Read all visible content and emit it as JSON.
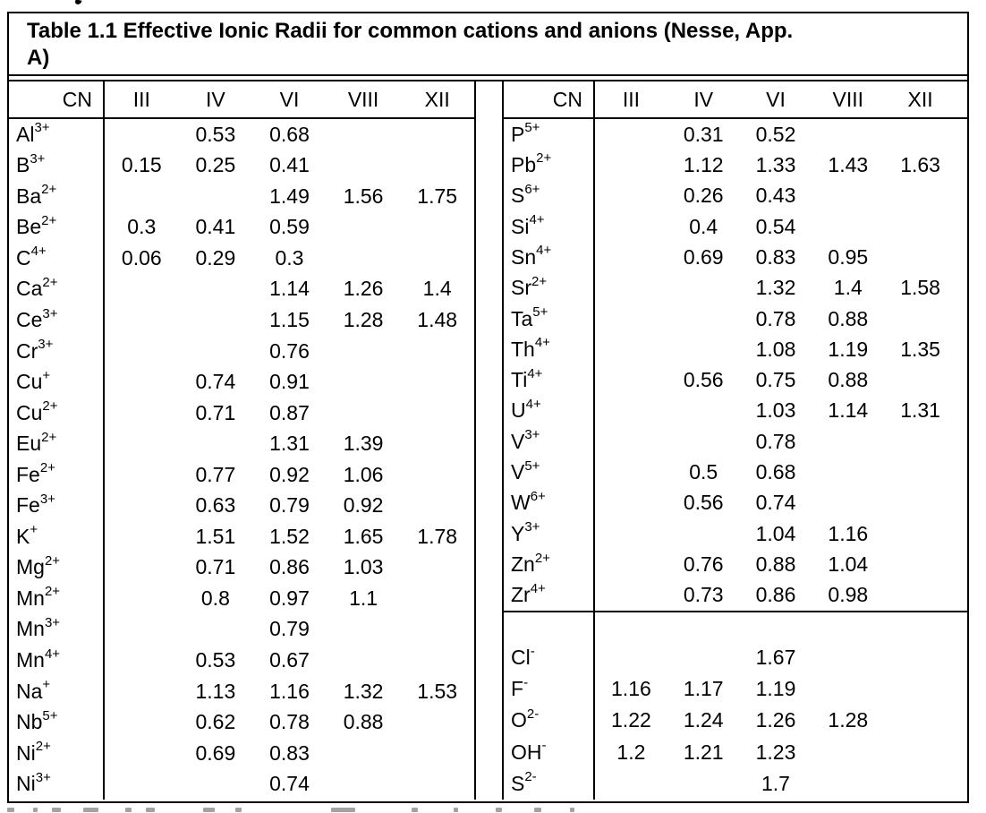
{
  "table": {
    "title": "Table 1.1 Effective Ionic Radii for common cations and anions (Nesse, App. A)",
    "title_line1": "Table 1.1 Effective Ionic Radii for common cations and anions (Nesse, App.",
    "title_line2": "A)",
    "corner_label": "CN",
    "cn_headers": [
      "III",
      "IV",
      "VI",
      "VIII",
      "XII"
    ],
    "left": {
      "rows": [
        {
          "ion": "Al",
          "sup": "3+",
          "values": [
            "",
            "0.53",
            "0.68",
            "",
            ""
          ]
        },
        {
          "ion": "B",
          "sup": "3+",
          "values": [
            "0.15",
            "0.25",
            "0.41",
            "",
            ""
          ]
        },
        {
          "ion": "Ba",
          "sup": "2+",
          "values": [
            "",
            "",
            "1.49",
            "1.56",
            "1.75"
          ]
        },
        {
          "ion": "Be",
          "sup": "2+",
          "values": [
            "0.3",
            "0.41",
            "0.59",
            "",
            ""
          ]
        },
        {
          "ion": "C",
          "sup": "4+",
          "values": [
            "0.06",
            "0.29",
            "0.3",
            "",
            ""
          ]
        },
        {
          "ion": "Ca",
          "sup": "2+",
          "values": [
            "",
            "",
            "1.14",
            "1.26",
            "1.4"
          ]
        },
        {
          "ion": "Ce",
          "sup": "3+",
          "values": [
            "",
            "",
            "1.15",
            "1.28",
            "1.48"
          ]
        },
        {
          "ion": "Cr",
          "sup": "3+",
          "values": [
            "",
            "",
            "0.76",
            "",
            ""
          ]
        },
        {
          "ion": "Cu",
          "sup": "+",
          "values": [
            "",
            "0.74",
            "0.91",
            "",
            ""
          ]
        },
        {
          "ion": "Cu",
          "sup": "2+",
          "values": [
            "",
            "0.71",
            "0.87",
            "",
            ""
          ]
        },
        {
          "ion": "Eu",
          "sup": "2+",
          "values": [
            "",
            "",
            "1.31",
            "1.39",
            ""
          ]
        },
        {
          "ion": "Fe",
          "sup": "2+",
          "values": [
            "",
            "0.77",
            "0.92",
            "1.06",
            ""
          ]
        },
        {
          "ion": "Fe",
          "sup": "3+",
          "values": [
            "",
            "0.63",
            "0.79",
            "0.92",
            ""
          ]
        },
        {
          "ion": "K",
          "sup": "+",
          "values": [
            "",
            "1.51",
            "1.52",
            "1.65",
            "1.78"
          ]
        },
        {
          "ion": "Mg",
          "sup": "2+",
          "values": [
            "",
            "0.71",
            "0.86",
            "1.03",
            ""
          ]
        },
        {
          "ion": "Mn",
          "sup": "2+",
          "values": [
            "",
            "0.8",
            "0.97",
            "1.1",
            ""
          ]
        },
        {
          "ion": "Mn",
          "sup": "3+",
          "values": [
            "",
            "",
            "0.79",
            "",
            ""
          ]
        },
        {
          "ion": "Mn",
          "sup": "4+",
          "values": [
            "",
            "0.53",
            "0.67",
            "",
            ""
          ]
        },
        {
          "ion": "Na",
          "sup": "+",
          "values": [
            "",
            "1.13",
            "1.16",
            "1.32",
            "1.53"
          ]
        },
        {
          "ion": "Nb",
          "sup": "5+",
          "values": [
            "",
            "0.62",
            "0.78",
            "0.88",
            ""
          ]
        },
        {
          "ion": "Ni",
          "sup": "2+",
          "values": [
            "",
            "0.69",
            "0.83",
            "",
            ""
          ]
        },
        {
          "ion": "Ni",
          "sup": "3+",
          "values": [
            "",
            "",
            "0.74",
            "",
            ""
          ]
        }
      ]
    },
    "right": {
      "cation_rows": [
        {
          "ion": "P",
          "sup": "5+",
          "values": [
            "",
            "0.31",
            "0.52",
            "",
            ""
          ]
        },
        {
          "ion": "Pb",
          "sup": "2+",
          "values": [
            "",
            "1.12",
            "1.33",
            "1.43",
            "1.63"
          ]
        },
        {
          "ion": "S",
          "sup": "6+",
          "values": [
            "",
            "0.26",
            "0.43",
            "",
            ""
          ]
        },
        {
          "ion": "Si",
          "sup": "4+",
          "values": [
            "",
            "0.4",
            "0.54",
            "",
            ""
          ]
        },
        {
          "ion": "Sn",
          "sup": "4+",
          "values": [
            "",
            "0.69",
            "0.83",
            "0.95",
            ""
          ]
        },
        {
          "ion": "Sr",
          "sup": "2+",
          "values": [
            "",
            "",
            "1.32",
            "1.4",
            "1.58"
          ]
        },
        {
          "ion": "Ta",
          "sup": "5+",
          "values": [
            "",
            "",
            "0.78",
            "0.88",
            ""
          ]
        },
        {
          "ion": "Th",
          "sup": "4+",
          "values": [
            "",
            "",
            "1.08",
            "1.19",
            "1.35"
          ]
        },
        {
          "ion": "Ti",
          "sup": "4+",
          "values": [
            "",
            "0.56",
            "0.75",
            "0.88",
            ""
          ]
        },
        {
          "ion": "U",
          "sup": "4+",
          "values": [
            "",
            "",
            "1.03",
            "1.14",
            "1.31"
          ]
        },
        {
          "ion": "V",
          "sup": "3+",
          "values": [
            "",
            "",
            "0.78",
            "",
            ""
          ]
        },
        {
          "ion": "V",
          "sup": "5+",
          "values": [
            "",
            "0.5",
            "0.68",
            "",
            ""
          ]
        },
        {
          "ion": "W",
          "sup": "6+",
          "values": [
            "",
            "0.56",
            "0.74",
            "",
            ""
          ]
        },
        {
          "ion": "Y",
          "sup": "3+",
          "values": [
            "",
            "",
            "1.04",
            "1.16",
            ""
          ]
        },
        {
          "ion": "Zn",
          "sup": "2+",
          "values": [
            "",
            "0.76",
            "0.88",
            "1.04",
            ""
          ]
        },
        {
          "ion": "Zr",
          "sup": "4+",
          "values": [
            "",
            "0.73",
            "0.86",
            "0.98",
            ""
          ]
        }
      ],
      "anion_rows": [
        {
          "ion": "Cl",
          "sup": "-",
          "values": [
            "",
            "",
            "1.67",
            "",
            ""
          ]
        },
        {
          "ion": "F",
          "sup": "-",
          "values": [
            "1.16",
            "1.17",
            "1.19",
            "",
            ""
          ]
        },
        {
          "ion": "O",
          "sup": "2-",
          "values": [
            "1.22",
            "1.24",
            "1.26",
            "1.28",
            ""
          ]
        },
        {
          "ion": "OH",
          "sup": "-",
          "values": [
            "1.2",
            "1.21",
            "1.23",
            "",
            ""
          ]
        },
        {
          "ion": "S",
          "sup": "2-",
          "values": [
            "",
            "",
            "1.7",
            "",
            ""
          ]
        }
      ]
    }
  }
}
